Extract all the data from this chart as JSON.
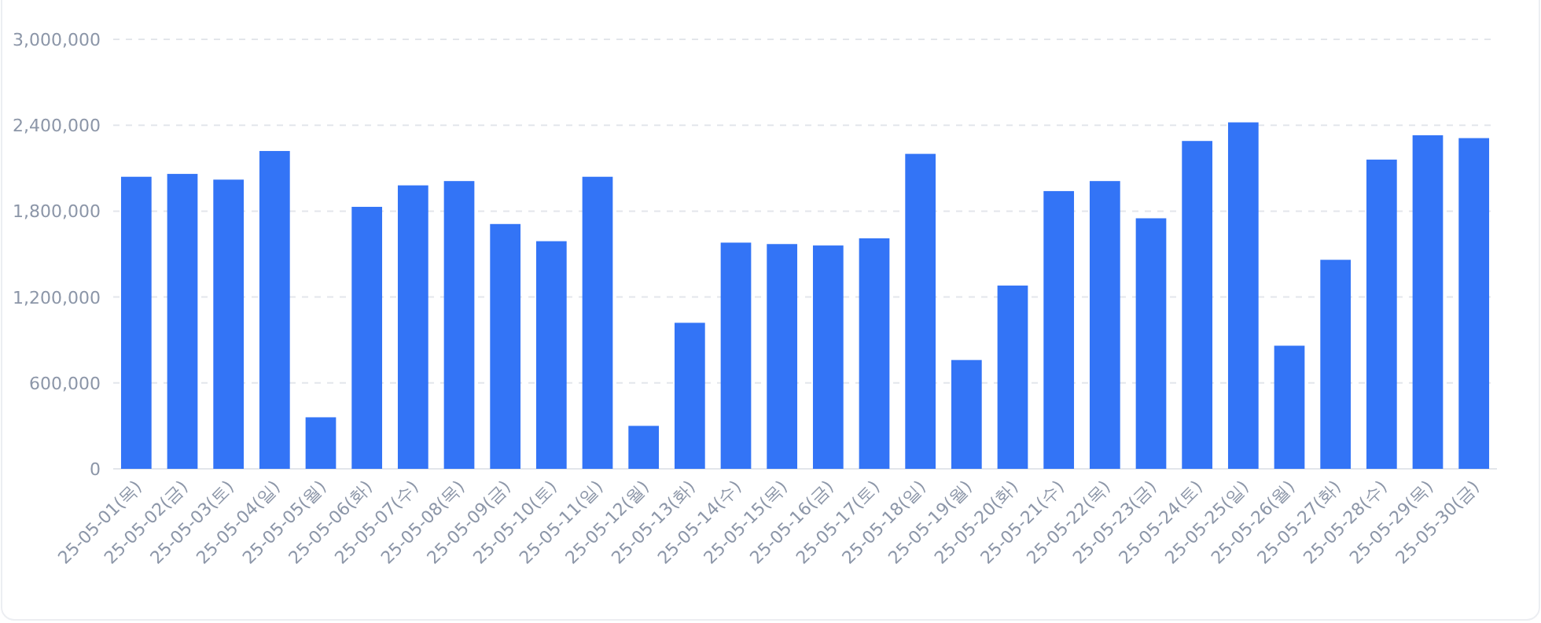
{
  "chart_data": {
    "type": "bar",
    "categories": [
      "25-05-01(목)",
      "25-05-02(금)",
      "25-05-03(토)",
      "25-05-04(일)",
      "25-05-05(월)",
      "25-05-06(화)",
      "25-05-07(수)",
      "25-05-08(목)",
      "25-05-09(금)",
      "25-05-10(토)",
      "25-05-11(일)",
      "25-05-12(월)",
      "25-05-13(화)",
      "25-05-14(수)",
      "25-05-15(목)",
      "25-05-16(금)",
      "25-05-17(토)",
      "25-05-18(일)",
      "25-05-19(월)",
      "25-05-20(화)",
      "25-05-21(수)",
      "25-05-22(목)",
      "25-05-23(금)",
      "25-05-24(토)",
      "25-05-25(일)",
      "25-05-26(월)",
      "25-05-27(화)",
      "25-05-28(수)",
      "25-05-29(목)",
      "25-05-30(금)"
    ],
    "values": [
      2040000,
      2060000,
      2020000,
      2220000,
      360000,
      1830000,
      1980000,
      2010000,
      1710000,
      1590000,
      2040000,
      300000,
      1020000,
      1580000,
      1570000,
      1560000,
      1610000,
      2200000,
      760000,
      1280000,
      1940000,
      2010000,
      1750000,
      2290000,
      2420000,
      860000,
      1460000,
      2160000,
      2330000,
      2310000
    ],
    "color": "#3374f6",
    "ylim": [
      0,
      3000000
    ],
    "yticks": [
      {
        "value": 0,
        "label": "0"
      },
      {
        "value": 600000,
        "label": "600,000"
      },
      {
        "value": 1200000,
        "label": "1,200,000"
      },
      {
        "value": 1800000,
        "label": "1,800,000"
      },
      {
        "value": 2400000,
        "label": "2,400,000"
      },
      {
        "value": 3000000,
        "label": "3,000,000"
      }
    ],
    "grid": "y"
  }
}
